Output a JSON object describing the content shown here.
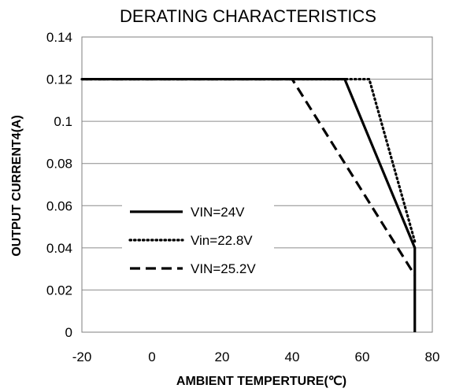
{
  "chart_data": {
    "type": "line",
    "title": "DERATING CHARACTERISTICS",
    "xlabel": "AMBIENT TEMPERTURE(℃)",
    "ylabel": "OUTPUT CURRENT4(A)",
    "xlim": [
      -20,
      80
    ],
    "ylim": [
      0,
      0.14
    ],
    "x_ticks": [
      "-20",
      "0",
      "20",
      "40",
      "60",
      "80"
    ],
    "y_ticks": [
      "0",
      "0.02",
      "0.04",
      "0.06",
      "0.08",
      "0.1",
      "0.12",
      "0.14"
    ],
    "grid": "horizontal",
    "legend_position": "center-left",
    "series": [
      {
        "name": "VIN=24V",
        "style": "solid",
        "color": "#000000",
        "x": [
          -20,
          55,
          75,
          75
        ],
        "y": [
          0.12,
          0.12,
          0.04,
          0
        ]
      },
      {
        "name": "Vin=22.8V",
        "style": "dotted",
        "color": "#000000",
        "x": [
          -20,
          62,
          75
        ],
        "y": [
          0.12,
          0.12,
          0.043
        ]
      },
      {
        "name": "VIN=25.2V",
        "style": "dashed",
        "color": "#000000",
        "x": [
          -20,
          40,
          75
        ],
        "y": [
          0.12,
          0.12,
          0.027
        ]
      }
    ]
  }
}
